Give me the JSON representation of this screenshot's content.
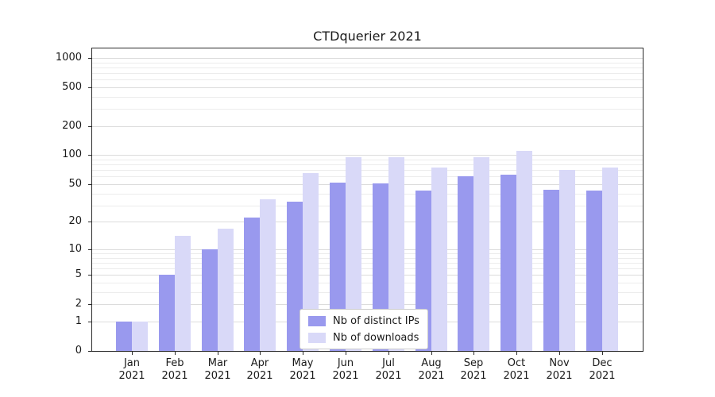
{
  "chart_data": {
    "type": "bar",
    "title": "CTDquerier 2021",
    "categories": [
      "Jan",
      "Feb",
      "Mar",
      "Apr",
      "May",
      "Jun",
      "Jul",
      "Aug",
      "Sep",
      "Oct",
      "Nov",
      "Dec"
    ],
    "year": "2021",
    "series": [
      {
        "name": "Nb of distinct IPs",
        "color": "#9999ee",
        "values": [
          1,
          5,
          10,
          22,
          33,
          52,
          51,
          43,
          60,
          63,
          44,
          43
        ]
      },
      {
        "name": "Nb of downloads",
        "color": "#d9d9f8",
        "values": [
          1,
          14,
          17,
          35,
          65,
          95,
          95,
          75,
          95,
          110,
          70,
          75
        ]
      }
    ],
    "yscale": "log1p",
    "ylim": [
      0,
      1250
    ],
    "yticks": [
      0,
      1,
      2,
      5,
      10,
      20,
      50,
      100,
      200,
      500,
      1000
    ],
    "minor_yticks": [
      3,
      4,
      6,
      7,
      8,
      9,
      30,
      40,
      60,
      70,
      80,
      90,
      300,
      400,
      600,
      700,
      800,
      900
    ],
    "grid": true,
    "legend_position": "lower center",
    "colors": {
      "major_grid": "#dcdcdc",
      "minor_grid": "#ececec",
      "axis": "#2b2b2b",
      "text": "#1a1a1a"
    }
  }
}
